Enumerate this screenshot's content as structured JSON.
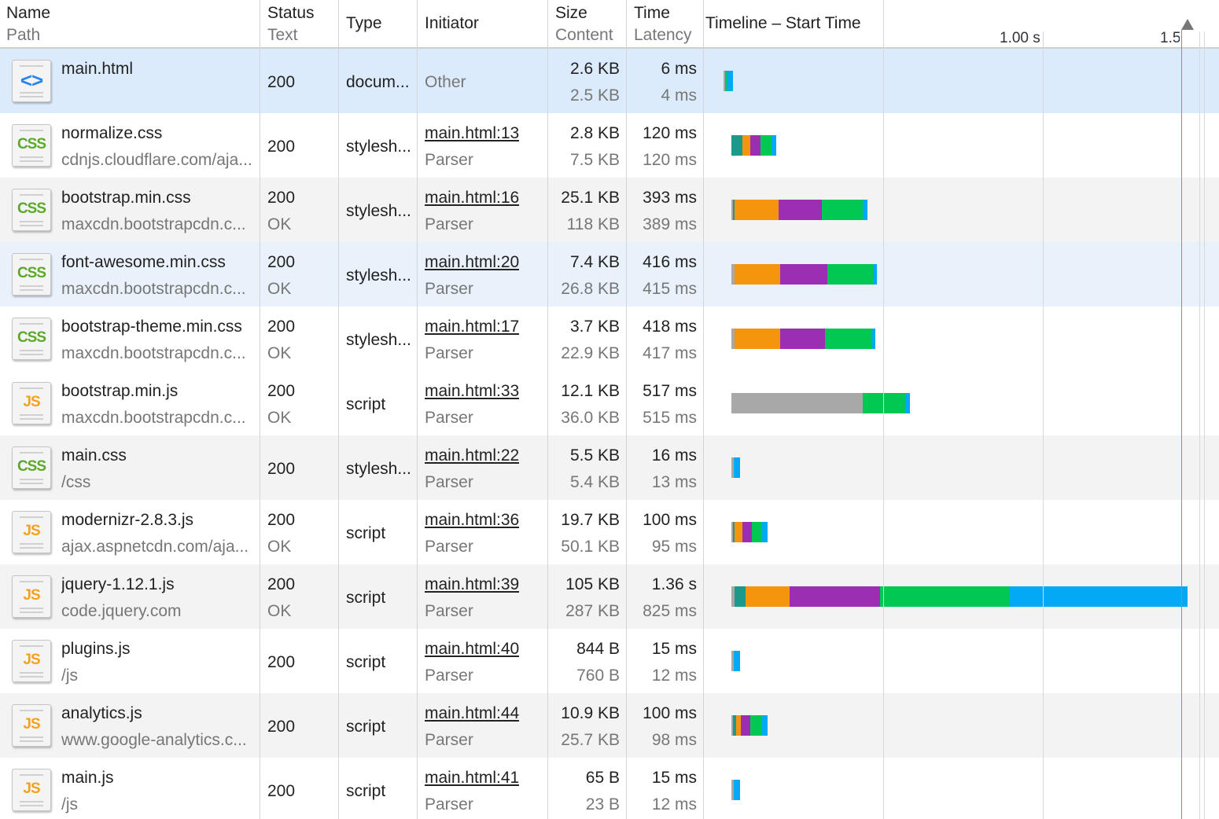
{
  "columns": {
    "name": "Name",
    "path": "Path",
    "status": "Status",
    "text": "Text",
    "type": "Type",
    "initiator": "Initiator",
    "size": "Size",
    "content": "Content",
    "time": "Time",
    "latency": "Latency",
    "timeline": "Timeline – Start Time"
  },
  "timeline_ticks": [
    "1.00 s",
    "1.5"
  ],
  "colors": {
    "stalled": "#a8a8a8",
    "dns": "#1b9a8a",
    "connect": "#f4950d",
    "ssl": "#9c2eb4",
    "waiting": "#00c853",
    "download": "#03a9f4",
    "selected_row": "#dcebfb",
    "stripe": "#f3f3f3",
    "current_time_line": "#e26b6b"
  },
  "requests": [
    {
      "icon": "html-file-icon",
      "icon_label": "<>",
      "name": "main.html",
      "path": "",
      "status": "200",
      "text": "",
      "type": "docum...",
      "initiator": "Other",
      "initiator_sub": "",
      "size": "2.6 KB",
      "content": "2.5 KB",
      "time": "6 ms",
      "latency": "4 ms",
      "row_style": "selected",
      "timing_ms": {
        "start": 0,
        "stalled": 5,
        "dns": 0,
        "connect": 0,
        "ssl": 0,
        "waiting": 4,
        "download": 20
      }
    },
    {
      "icon": "css-file-icon",
      "icon_label": "CSS",
      "name": "normalize.css",
      "path": "cdnjs.cloudflare.com/aja...",
      "status": "200",
      "text": "",
      "type": "stylesh...",
      "initiator": "main.html:13",
      "initiator_sub": "Parser",
      "size": "2.8 KB",
      "content": "7.5 KB",
      "time": "120 ms",
      "latency": "120 ms",
      "row_style": "plain",
      "timing_ms": {
        "start": 25,
        "stalled": 0,
        "dns": 35,
        "connect": 25,
        "ssl": 30,
        "waiting": 35,
        "download": 15
      }
    },
    {
      "icon": "css-file-icon",
      "icon_label": "CSS",
      "name": "bootstrap.min.css",
      "path": "maxcdn.bootstrapcdn.c...",
      "status": "200",
      "text": "OK",
      "type": "stylesh...",
      "initiator": "main.html:16",
      "initiator_sub": "Parser",
      "size": "25.1 KB",
      "content": "118 KB",
      "time": "393 ms",
      "latency": "389 ms",
      "row_style": "striped",
      "timing_ms": {
        "start": 25,
        "stalled": 5,
        "dns": 5,
        "connect": 137,
        "ssl": 137,
        "waiting": 127,
        "download": 15
      }
    },
    {
      "icon": "css-file-icon",
      "icon_label": "CSS",
      "name": "font-awesome.min.css",
      "path": "maxcdn.bootstrapcdn.c...",
      "status": "200",
      "text": "OK",
      "type": "stylesh...",
      "initiator": "main.html:20",
      "initiator_sub": "Parser",
      "size": "7.4 KB",
      "content": "26.8 KB",
      "time": "416 ms",
      "latency": "415 ms",
      "row_style": "selected-light",
      "timing_ms": {
        "start": 25,
        "stalled": 10,
        "dns": 0,
        "connect": 142,
        "ssl": 147,
        "waiting": 147,
        "download": 10
      }
    },
    {
      "icon": "css-file-icon",
      "icon_label": "CSS",
      "name": "bootstrap-theme.min.css",
      "path": "maxcdn.bootstrapcdn.c...",
      "status": "200",
      "text": "OK",
      "type": "stylesh...",
      "initiator": "main.html:17",
      "initiator_sub": "Parser",
      "size": "3.7 KB",
      "content": "22.9 KB",
      "time": "418 ms",
      "latency": "417 ms",
      "row_style": "plain",
      "timing_ms": {
        "start": 25,
        "stalled": 10,
        "dns": 0,
        "connect": 142,
        "ssl": 142,
        "waiting": 147,
        "download": 10
      }
    },
    {
      "icon": "js-file-icon",
      "icon_label": "JS",
      "name": "bootstrap.min.js",
      "path": "maxcdn.bootstrapcdn.c...",
      "status": "200",
      "text": "OK",
      "type": "script",
      "initiator": "main.html:33",
      "initiator_sub": "Parser",
      "size": "12.1 KB",
      "content": "36.0 KB",
      "time": "517 ms",
      "latency": "515 ms",
      "row_style": "plain",
      "timing_ms": {
        "start": 25,
        "stalled": 412,
        "dns": 0,
        "connect": 0,
        "ssl": 0,
        "waiting": 132,
        "download": 15
      }
    },
    {
      "icon": "css-file-icon",
      "icon_label": "CSS",
      "name": "main.css",
      "path": "/css",
      "status": "200",
      "text": "",
      "type": "stylesh...",
      "initiator": "main.html:22",
      "initiator_sub": "Parser",
      "size": "5.5 KB",
      "content": "5.4 KB",
      "time": "16 ms",
      "latency": "13 ms",
      "row_style": "striped",
      "timing_ms": {
        "start": 25,
        "stalled": 8,
        "dns": 0,
        "connect": 0,
        "ssl": 0,
        "waiting": 0,
        "download": 20
      }
    },
    {
      "icon": "js-file-icon",
      "icon_label": "JS",
      "name": "modernizr-2.8.3.js",
      "path": "ajax.aspnetcdn.com/aja...",
      "status": "200",
      "text": "OK",
      "type": "script",
      "initiator": "main.html:36",
      "initiator_sub": "Parser",
      "size": "19.7 KB",
      "content": "50.1 KB",
      "time": "100 ms",
      "latency": "95 ms",
      "row_style": "plain",
      "timing_ms": {
        "start": 25,
        "stalled": 5,
        "dns": 5,
        "connect": 25,
        "ssl": 30,
        "waiting": 32,
        "download": 15
      }
    },
    {
      "icon": "js-file-icon",
      "icon_label": "JS",
      "name": "jquery-1.12.1.js",
      "path": "code.jquery.com",
      "status": "200",
      "text": "OK",
      "type": "script",
      "initiator": "main.html:39",
      "initiator_sub": "Parser",
      "size": "105 KB",
      "content": "287 KB",
      "time": "1.36 s",
      "latency": "825 ms",
      "row_style": "striped",
      "timing_ms": {
        "start": 25,
        "stalled": 10,
        "dns": 35,
        "connect": 137,
        "ssl": 284,
        "waiting": 402,
        "download": 561
      }
    },
    {
      "icon": "js-file-icon",
      "icon_label": "JS",
      "name": "plugins.js",
      "path": "/js",
      "status": "200",
      "text": "",
      "type": "script",
      "initiator": "main.html:40",
      "initiator_sub": "Parser",
      "size": "844 B",
      "content": "760 B",
      "time": "15 ms",
      "latency": "12 ms",
      "row_style": "plain",
      "timing_ms": {
        "start": 25,
        "stalled": 8,
        "dns": 0,
        "connect": 0,
        "ssl": 0,
        "waiting": 0,
        "download": 20
      }
    },
    {
      "icon": "js-file-icon",
      "icon_label": "JS",
      "name": "analytics.js",
      "path": "www.google-analytics.c...",
      "status": "200",
      "text": "",
      "type": "script",
      "initiator": "main.html:44",
      "initiator_sub": "Parser",
      "size": "10.9 KB",
      "content": "25.7 KB",
      "time": "100 ms",
      "latency": "98 ms",
      "row_style": "striped",
      "timing_ms": {
        "start": 25,
        "stalled": 5,
        "dns": 10,
        "connect": 15,
        "ssl": 30,
        "waiting": 37,
        "download": 15
      }
    },
    {
      "icon": "js-file-icon",
      "icon_label": "JS",
      "name": "main.js",
      "path": "/js",
      "status": "200",
      "text": "",
      "type": "script",
      "initiator": "main.html:41",
      "initiator_sub": "Parser",
      "size": "65 B",
      "content": "23 B",
      "time": "15 ms",
      "latency": "12 ms",
      "row_style": "plain",
      "timing_ms": {
        "start": 25,
        "stalled": 8,
        "dns": 0,
        "connect": 0,
        "ssl": 0,
        "waiting": 0,
        "download": 20
      }
    }
  ]
}
